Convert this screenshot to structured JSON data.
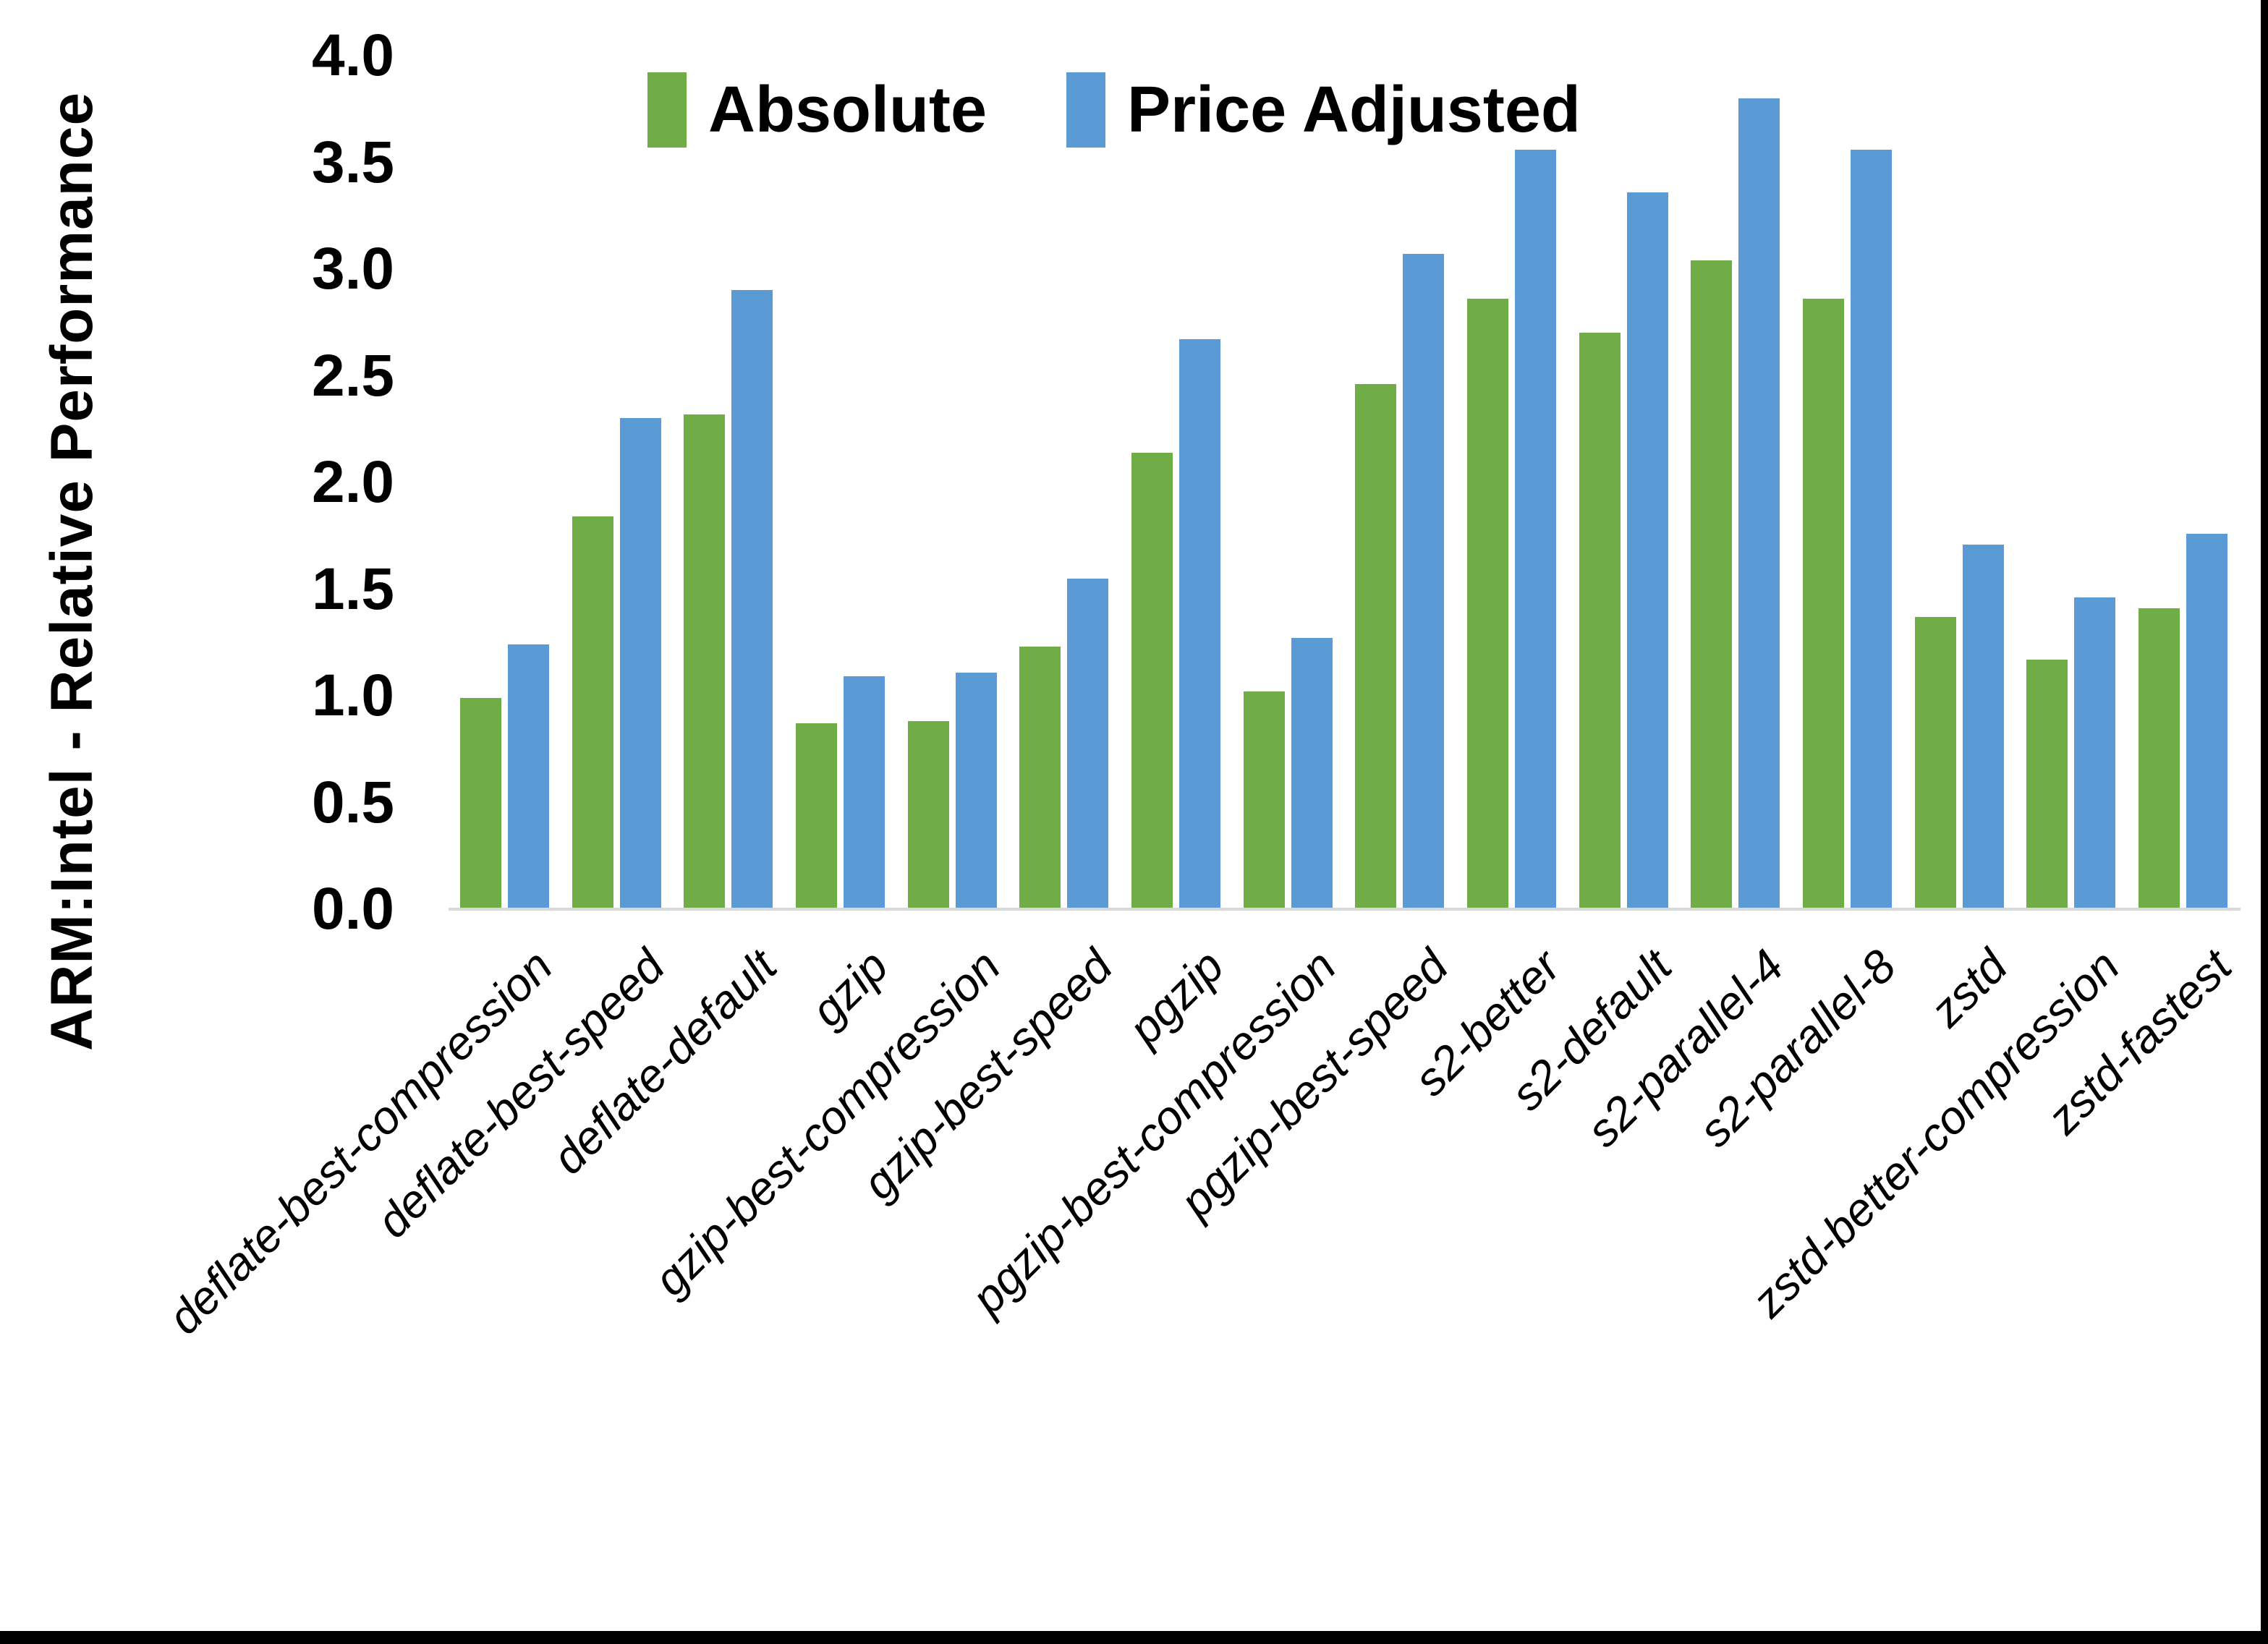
{
  "chart_data": {
    "type": "bar",
    "title": "",
    "xlabel": "",
    "ylabel": "ARM:Intel - Relative Performance",
    "ylim": [
      0.0,
      4.0
    ],
    "ytick_step": 0.5,
    "yticks": [
      "4.0",
      "3.5",
      "3.0",
      "2.5",
      "2.0",
      "1.5",
      "1.0",
      "0.5",
      "0.0"
    ],
    "grid": false,
    "legend_position": "top-center",
    "categories": [
      "deflate-best-compression",
      "deflate-best-speed",
      "deflate-default",
      "gzip",
      "gzip-best-compression",
      "gzip-best-speed",
      "pgzip",
      "pgzip-best-compression",
      "pgzip-best-speed",
      "s2-better",
      "s2-default",
      "s2-parallel-4",
      "s2-parallel-8",
      "zstd",
      "zstd-better-compression",
      "zstd-fastest"
    ],
    "series": [
      {
        "name": "Absolute",
        "color": "#70AD47",
        "values": [
          0.99,
          1.84,
          2.32,
          0.87,
          0.88,
          1.23,
          2.14,
          1.02,
          2.46,
          2.86,
          2.7,
          3.04,
          2.86,
          1.37,
          1.17,
          1.41
        ]
      },
      {
        "name": "Price Adjusted",
        "color": "#5B9BD5",
        "values": [
          1.24,
          2.3,
          2.9,
          1.09,
          1.11,
          1.55,
          2.67,
          1.27,
          3.07,
          3.56,
          3.36,
          3.8,
          3.56,
          1.71,
          1.46,
          1.76
        ]
      }
    ],
    "axis_line_color": "#D9D9D9",
    "text_color": "#000000",
    "background_color": "#FFFFFF"
  },
  "frame": {
    "right_border_color": "#000000",
    "bottom_border_color": "#000000"
  }
}
